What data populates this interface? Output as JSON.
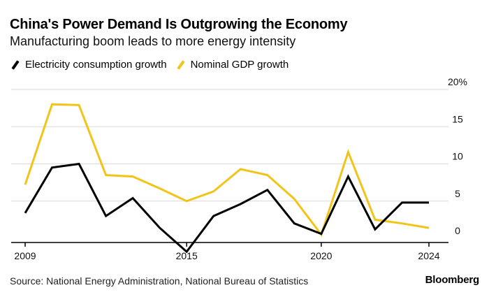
{
  "header": {
    "title": "China's Power Demand Is Outgrowing the Economy",
    "subtitle": "Manufacturing boom leads to more energy intensity"
  },
  "footer": {
    "source": "Source: National Energy Administration, National Bureau of Statistics",
    "brand": "Bloomberg"
  },
  "colors": {
    "electricity": "#000000",
    "gdp": "#f2c418",
    "grid": "#d9d9d9",
    "axis": "#000000"
  },
  "chart_data": {
    "type": "line",
    "title": "China's Power Demand Is Outgrowing the Economy",
    "subtitle": "Manufacturing boom leads to more energy intensity",
    "xlabel": "",
    "ylabel": "",
    "x": [
      2009,
      2010,
      2011,
      2012,
      2013,
      2014,
      2015,
      2016,
      2017,
      2018,
      2019,
      2020,
      2021,
      2022,
      2023,
      2024
    ],
    "xlim": [
      2009,
      2025
    ],
    "ylim": [
      -2,
      20
    ],
    "y_ticks": [
      0,
      5,
      10,
      15,
      20
    ],
    "y_tick_labels": [
      "0",
      "5",
      "10",
      "15",
      "20%"
    ],
    "x_ticks": [
      2009,
      2015,
      2020,
      2024
    ],
    "x_tick_labels": [
      "2009",
      "2015",
      "2020",
      "2024"
    ],
    "legend_position": "top-left",
    "grid": true,
    "series": [
      {
        "name": "Electricity consumption growth",
        "color": "#000000",
        "x": [
          2009,
          2010,
          2011,
          2012,
          2013,
          2014,
          2015,
          2016,
          2017,
          2018,
          2019,
          2020,
          2021,
          2022,
          2023,
          2024
        ],
        "values": [
          3.4,
          9.5,
          10.0,
          3.0,
          5.4,
          1.4,
          -1.8,
          3.0,
          4.6,
          6.5,
          2.0,
          0.6,
          8.3,
          1.2,
          4.8,
          4.8
        ]
      },
      {
        "name": "Nominal GDP growth",
        "color": "#f2c418",
        "x": [
          2009,
          2010,
          2011,
          2012,
          2013,
          2014,
          2015,
          2016,
          2017,
          2018,
          2019,
          2020,
          2021,
          2022,
          2023,
          2024
        ],
        "values": [
          7.2,
          18.0,
          17.9,
          8.5,
          8.3,
          6.7,
          5.0,
          6.3,
          9.3,
          8.5,
          5.3,
          0.5,
          11.6,
          2.5,
          2.0,
          1.4
        ]
      }
    ]
  }
}
